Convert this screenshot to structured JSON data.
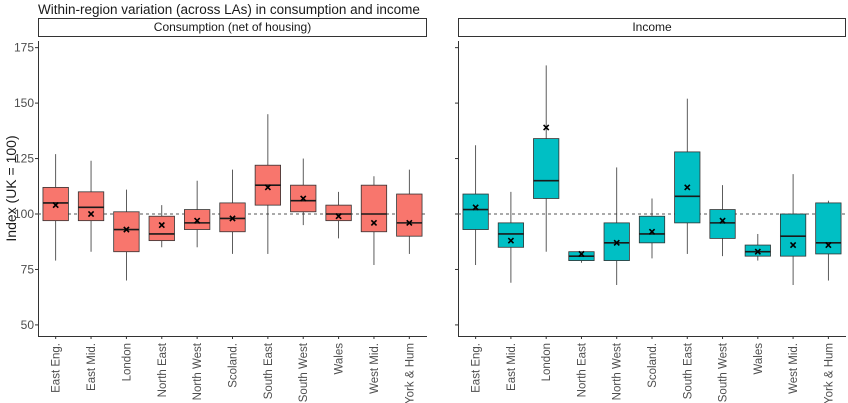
{
  "chart_data": {
    "type": "boxplot",
    "title": "Within-region variation (across LAs) in consumption and income",
    "ylabel": "Index (UK = 100)",
    "ylim": [
      45,
      178
    ],
    "yticks": [
      50,
      75,
      100,
      125,
      150,
      175
    ],
    "reference_line": 100,
    "categories": [
      "East Eng.",
      "East Mid.",
      "London",
      "North East",
      "North West",
      "Scoland.",
      "South East",
      "South West",
      "Wales",
      "West Mid.",
      "York & Hum"
    ],
    "panels": [
      {
        "name": "Consumption (net of housing)",
        "color": "#f8766d",
        "boxes": [
          {
            "min": 79,
            "q1": 97,
            "median": 105,
            "q3": 112,
            "max": 127,
            "mean": 104
          },
          {
            "min": 83,
            "q1": 97,
            "median": 103,
            "q3": 110,
            "max": 124,
            "mean": 100
          },
          {
            "min": 70,
            "q1": 83,
            "median": 93,
            "q3": 101,
            "max": 111,
            "mean": 93
          },
          {
            "min": 85,
            "q1": 88,
            "median": 91,
            "q3": 99,
            "max": 104,
            "mean": 95
          },
          {
            "min": 85,
            "q1": 93,
            "median": 96,
            "q3": 102,
            "max": 115,
            "mean": 97
          },
          {
            "min": 82,
            "q1": 92,
            "median": 98,
            "q3": 105,
            "max": 120,
            "mean": 98
          },
          {
            "min": 82,
            "q1": 104,
            "median": 113,
            "q3": 122,
            "max": 145,
            "mean": 112
          },
          {
            "min": 95,
            "q1": 101,
            "median": 106,
            "q3": 113,
            "max": 125,
            "mean": 107
          },
          {
            "min": 89,
            "q1": 97,
            "median": 100,
            "q3": 104,
            "max": 110,
            "mean": 99
          },
          {
            "min": 77,
            "q1": 92,
            "median": 100,
            "q3": 113,
            "max": 117,
            "mean": 96
          },
          {
            "min": 82,
            "q1": 90,
            "median": 96,
            "q3": 109,
            "max": 120,
            "mean": 96
          }
        ]
      },
      {
        "name": "Income",
        "color": "#00bfc4",
        "boxes": [
          {
            "min": 77,
            "q1": 93,
            "median": 102,
            "q3": 109,
            "max": 131,
            "mean": 103
          },
          {
            "min": 69,
            "q1": 85,
            "median": 91,
            "q3": 96,
            "max": 110,
            "mean": 88
          },
          {
            "min": 83,
            "q1": 107,
            "median": 115,
            "q3": 134,
            "max": 167,
            "mean": 139
          },
          {
            "min": 78,
            "q1": 79,
            "median": 81,
            "q3": 83,
            "max": 83,
            "mean": 82
          },
          {
            "min": 68,
            "q1": 79,
            "median": 87,
            "q3": 96,
            "max": 121,
            "mean": 87
          },
          {
            "min": 80,
            "q1": 87,
            "median": 91,
            "q3": 99,
            "max": 107,
            "mean": 92
          },
          {
            "min": 82,
            "q1": 96,
            "median": 108,
            "q3": 128,
            "max": 152,
            "mean": 112
          },
          {
            "min": 81,
            "q1": 89,
            "median": 96,
            "q3": 102,
            "max": 113,
            "mean": 97
          },
          {
            "min": 79,
            "q1": 81,
            "median": 83,
            "q3": 86,
            "max": 91,
            "mean": 83
          },
          {
            "min": 68,
            "q1": 81,
            "median": 90,
            "q3": 100,
            "max": 118,
            "mean": 86
          },
          {
            "min": 70,
            "q1": 82,
            "median": 87,
            "q3": 105,
            "max": 106,
            "mean": 86
          }
        ]
      }
    ]
  }
}
